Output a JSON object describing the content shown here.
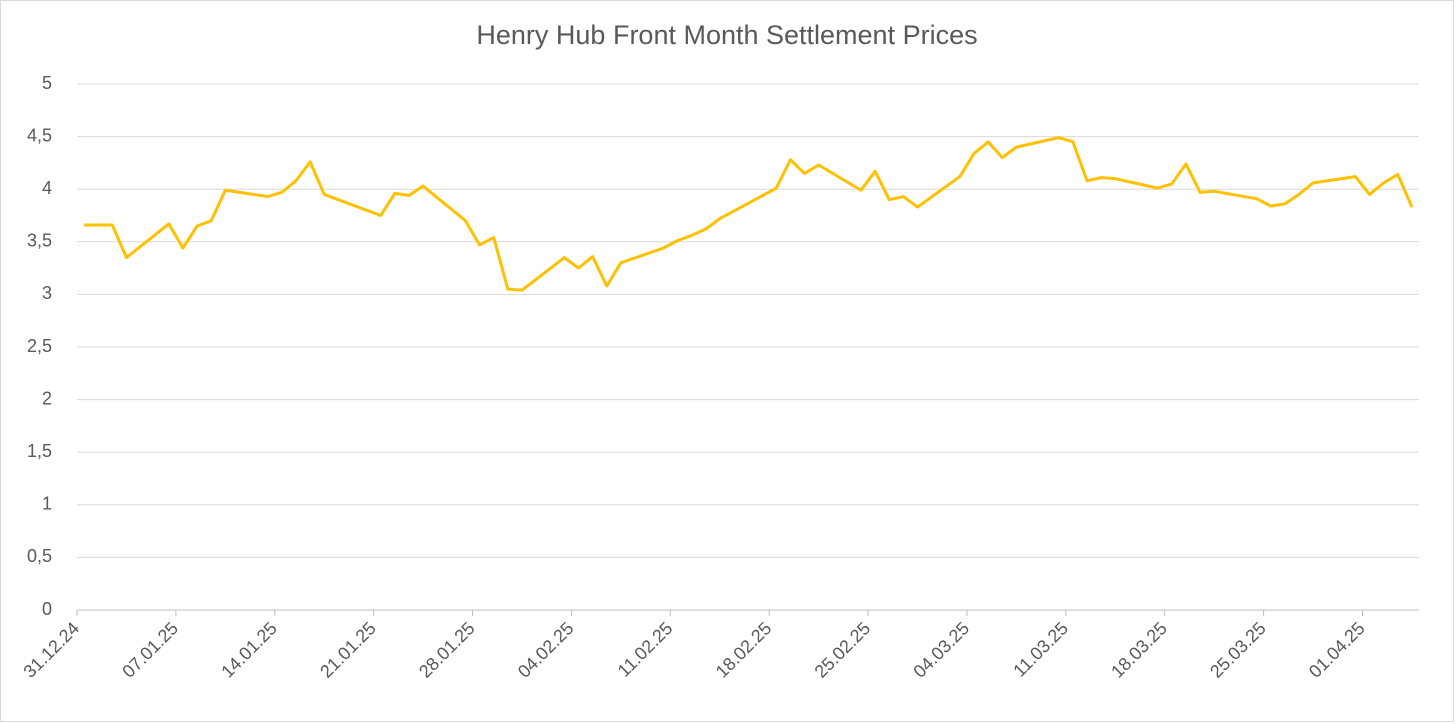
{
  "chart_data": {
    "type": "line",
    "title": "Henry Hub Front Month Settlement Prices",
    "x": [
      "2024-12-31",
      "2025-01-01",
      "2025-01-02",
      "2025-01-03",
      "2025-01-06",
      "2025-01-07",
      "2025-01-08",
      "2025-01-09",
      "2025-01-10",
      "2025-01-13",
      "2025-01-14",
      "2025-01-15",
      "2025-01-16",
      "2025-01-17",
      "2025-01-21",
      "2025-01-22",
      "2025-01-23",
      "2025-01-24",
      "2025-01-27",
      "2025-01-28",
      "2025-01-29",
      "2025-01-30",
      "2025-01-31",
      "2025-02-03",
      "2025-02-04",
      "2025-02-05",
      "2025-02-06",
      "2025-02-07",
      "2025-02-10",
      "2025-02-11",
      "2025-02-12",
      "2025-02-13",
      "2025-02-14",
      "2025-02-18",
      "2025-02-19",
      "2025-02-20",
      "2025-02-21",
      "2025-02-24",
      "2025-02-25",
      "2025-02-26",
      "2025-02-27",
      "2025-02-28",
      "2025-03-03",
      "2025-03-04",
      "2025-03-05",
      "2025-03-06",
      "2025-03-07",
      "2025-03-10",
      "2025-03-11",
      "2025-03-12",
      "2025-03-13",
      "2025-03-14",
      "2025-03-17",
      "2025-03-18",
      "2025-03-19",
      "2025-03-20",
      "2025-03-21",
      "2025-03-24",
      "2025-03-25",
      "2025-03-26",
      "2025-03-27",
      "2025-03-28",
      "2025-03-31",
      "2025-04-01",
      "2025-04-02",
      "2025-04-03",
      "2025-04-04"
    ],
    "values": [
      3.66,
      3.66,
      3.66,
      3.35,
      3.67,
      3.44,
      3.65,
      3.7,
      3.99,
      3.93,
      3.97,
      4.08,
      4.26,
      3.95,
      3.75,
      3.96,
      3.94,
      4.03,
      3.7,
      3.47,
      3.54,
      3.05,
      3.04,
      3.35,
      3.25,
      3.36,
      3.08,
      3.3,
      3.44,
      3.51,
      3.56,
      3.62,
      3.72,
      4.01,
      4.28,
      4.15,
      4.23,
      3.99,
      4.17,
      3.9,
      3.93,
      3.83,
      4.12,
      4.34,
      4.45,
      4.3,
      4.4,
      4.49,
      4.45,
      4.08,
      4.11,
      4.1,
      4.01,
      4.05,
      4.24,
      3.97,
      3.98,
      3.91,
      3.84,
      3.86,
      3.95,
      4.06,
      4.12,
      3.95,
      4.06,
      4.14,
      3.83
    ],
    "color": "#ffc000",
    "xlim": [
      "2024-12-31",
      "2025-04-04"
    ],
    "xticks": [
      {
        "value": "2024-12-31",
        "label": "31.12.24"
      },
      {
        "value": "2025-01-07",
        "label": "07.01.25"
      },
      {
        "value": "2025-01-14",
        "label": "14.01.25"
      },
      {
        "value": "2025-01-21",
        "label": "21.01.25"
      },
      {
        "value": "2025-01-28",
        "label": "28.01.25"
      },
      {
        "value": "2025-02-04",
        "label": "04.02.25"
      },
      {
        "value": "2025-02-11",
        "label": "11.02.25"
      },
      {
        "value": "2025-02-18",
        "label": "18.02.25"
      },
      {
        "value": "2025-02-25",
        "label": "25.02.25"
      },
      {
        "value": "2025-03-04",
        "label": "04.03.25"
      },
      {
        "value": "2025-03-11",
        "label": "11.03.25"
      },
      {
        "value": "2025-03-18",
        "label": "18.03.25"
      },
      {
        "value": "2025-03-25",
        "label": "25.03.25"
      },
      {
        "value": "2025-04-01",
        "label": "01.04.25"
      }
    ],
    "ylim": [
      0,
      5
    ],
    "yticks": [
      0,
      {
        "value": 0.5,
        "label": "0,5"
      },
      1,
      {
        "value": 1.5,
        "label": "1,5"
      },
      2,
      {
        "value": 2.5,
        "label": "2,5"
      },
      3,
      {
        "value": 3.5,
        "label": "3,5"
      },
      4,
      {
        "value": 4.5,
        "label": "4,5"
      },
      5
    ],
    "grid": true
  }
}
